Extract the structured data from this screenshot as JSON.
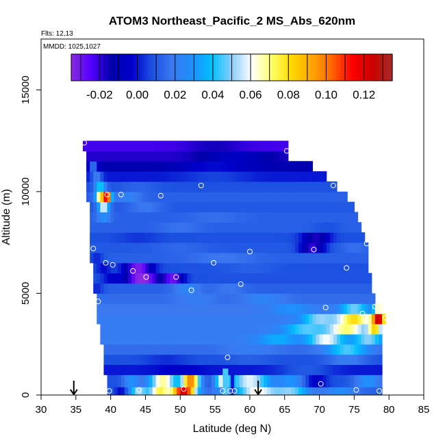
{
  "chart_data": {
    "type": "heatmap",
    "title": "ATOM3 Northeast_Pacific_2 MS_Abs_620nm",
    "flights_label": "Flts: 12,13",
    "dates_label": "MMDD: 1025,1027",
    "xlabel": "Latitude (deg N)",
    "ylabel": "Altitude (m)",
    "xlim": [
      30,
      85
    ],
    "ylim": [
      0,
      17500
    ],
    "x_ticks": [
      30,
      35,
      40,
      45,
      50,
      55,
      60,
      65,
      70,
      75,
      80,
      85
    ],
    "y_ticks": [
      0,
      5000,
      10000,
      15000
    ],
    "y_tick_labels": [
      "0",
      "5000",
      "10000",
      "15000"
    ],
    "grid": false,
    "colorbar": {
      "placement": "top-inside",
      "range": [
        -0.035,
        0.135
      ],
      "ticks": [
        -0.02,
        0.0,
        0.02,
        0.04,
        0.06,
        0.08,
        0.1,
        0.12
      ],
      "tick_labels": [
        "-0.02",
        "0.00",
        "0.02",
        "0.04",
        "0.06",
        "0.08",
        "0.10",
        "0.12"
      ],
      "colors": [
        "#8a2be2",
        "#5500ff",
        "#0000aa",
        "#0000cd",
        "#1a4fe0",
        "#3a78f0",
        "#1e90ff",
        "#00bfff",
        "#87cefa",
        "#ffffff",
        "#ffff66",
        "#ffd700",
        "#ffa500",
        "#ff6600",
        "#ff0000",
        "#cc0000",
        "#a52a2a"
      ]
    },
    "bands": [
      {
        "alt": [
          0,
          400
        ],
        "lat": [
          39.5,
          79
        ],
        "base": 0.012,
        "features": [
          {
            "c": 41.5,
            "w": 1.0,
            "a": -0.015
          },
          {
            "c": 44,
            "w": 1.3,
            "a": 0.04
          },
          {
            "c": 47,
            "w": 1.5,
            "a": 0.06
          },
          {
            "c": 50.5,
            "w": 1.8,
            "a": 0.11
          },
          {
            "c": 55.5,
            "w": 1.0,
            "a": 0.01
          },
          {
            "c": 61,
            "w": 3.0,
            "a": 0.05
          },
          {
            "c": 66,
            "w": 2.5,
            "a": 0.035
          },
          {
            "c": 73,
            "w": 2.5,
            "a": 0.015
          }
        ]
      },
      {
        "alt": [
          400,
          1000
        ],
        "lat": [
          39.5,
          79
        ],
        "base": 0.008,
        "features": [
          {
            "c": 43,
            "w": 1.2,
            "a": 0.02
          },
          {
            "c": 47.5,
            "w": 2.0,
            "a": 0.06
          },
          {
            "c": 51.5,
            "w": 1.3,
            "a": 0.09
          },
          {
            "c": 56,
            "w": 1.0,
            "a": 0.045
          },
          {
            "c": 60,
            "w": 3.0,
            "a": 0.05
          },
          {
            "c": 66,
            "w": 2.0,
            "a": 0.02
          },
          {
            "c": 69.5,
            "w": 1.5,
            "a": -0.015
          },
          {
            "c": 77,
            "w": 2.0,
            "a": 0.02
          }
        ]
      },
      {
        "alt": [
          1000,
          1500
        ],
        "lat": [
          39,
          79
        ],
        "base": 0.0,
        "features": [
          {
            "c": 50,
            "w": 3.0,
            "a": -0.005
          },
          {
            "c": 58,
            "w": 2.0,
            "a": 0.0
          },
          {
            "c": 68,
            "w": 4.0,
            "a": 0.01
          }
        ]
      },
      {
        "alt": [
          1500,
          2000
        ],
        "lat": [
          39,
          79
        ],
        "base": 0.008,
        "features": [
          {
            "c": 48,
            "w": 3.0,
            "a": -0.005
          },
          {
            "c": 60,
            "w": 3.0,
            "a": 0.004
          },
          {
            "c": 74,
            "w": 3.0,
            "a": 0.012
          }
        ]
      },
      {
        "alt": [
          2000,
          2500
        ],
        "lat": [
          39,
          79
        ],
        "base": 0.015,
        "features": [
          {
            "c": 60,
            "w": 4.0,
            "a": 0.005
          },
          {
            "c": 74,
            "w": 3.0,
            "a": 0.03
          }
        ]
      },
      {
        "alt": [
          2500,
          3000
        ],
        "lat": [
          38.5,
          79
        ],
        "base": 0.02,
        "features": [
          {
            "c": 64,
            "w": 3.0,
            "a": 0.015
          },
          {
            "c": 71,
            "w": 2.5,
            "a": 0.04
          },
          {
            "c": 77,
            "w": 2.0,
            "a": 0.03
          }
        ]
      },
      {
        "alt": [
          3000,
          3500
        ],
        "lat": [
          38.5,
          79
        ],
        "base": 0.02,
        "features": [
          {
            "c": 68,
            "w": 3.0,
            "a": 0.025
          },
          {
            "c": 74,
            "w": 3.0,
            "a": 0.05
          },
          {
            "c": 78,
            "w": 1.0,
            "a": 0.055
          }
        ]
      },
      {
        "alt": [
          3500,
          4000
        ],
        "lat": [
          38,
          79.5
        ],
        "base": 0.02,
        "features": [
          {
            "c": 70,
            "w": 2.5,
            "a": 0.03
          },
          {
            "c": 75,
            "w": 2.5,
            "a": 0.06
          },
          {
            "c": 78.5,
            "w": 1.0,
            "a": 0.1
          }
        ]
      },
      {
        "alt": [
          4000,
          4500
        ],
        "lat": [
          38,
          79
        ],
        "base": 0.018,
        "features": [
          {
            "c": 66,
            "w": 3.0,
            "a": 0.01
          },
          {
            "c": 75,
            "w": 2.0,
            "a": 0.03
          },
          {
            "c": 78.5,
            "w": 0.7,
            "a": 0.05
          }
        ]
      },
      {
        "alt": [
          4500,
          5000
        ],
        "lat": [
          38,
          78
        ],
        "base": 0.015,
        "features": [
          {
            "c": 52,
            "w": 3.0,
            "a": 0.005
          },
          {
            "c": 62,
            "w": 3.0,
            "a": 0.008
          }
        ]
      },
      {
        "alt": [
          5000,
          5500
        ],
        "lat": [
          37.5,
          77.5
        ],
        "base": 0.012,
        "features": [
          {
            "c": 51,
            "w": 2.0,
            "a": 0.012
          },
          {
            "c": 57,
            "w": 2.5,
            "a": 0.006
          },
          {
            "c": 38,
            "w": 1.0,
            "a": -0.01
          }
        ]
      },
      {
        "alt": [
          5500,
          6000
        ],
        "lat": [
          37.5,
          77.5
        ],
        "base": 0.008,
        "features": [
          {
            "c": 40,
            "w": 1.2,
            "a": -0.01
          },
          {
            "c": 44.5,
            "w": 2.5,
            "a": -0.045
          },
          {
            "c": 49,
            "w": 1.5,
            "a": -0.035
          }
        ]
      },
      {
        "alt": [
          6000,
          6500
        ],
        "lat": [
          37.5,
          77
        ],
        "base": 0.008,
        "features": [
          {
            "c": 44,
            "w": 2.0,
            "a": -0.04
          },
          {
            "c": 39,
            "w": 1.0,
            "a": -0.01
          },
          {
            "c": 60,
            "w": 4.0,
            "a": 0.004
          }
        ]
      },
      {
        "alt": [
          6500,
          7000
        ],
        "lat": [
          37,
          77
        ],
        "base": 0.012,
        "features": [
          {
            "c": 38,
            "w": 1.0,
            "a": -0.01
          },
          {
            "c": 56,
            "w": 5.0,
            "a": 0.006
          }
        ]
      },
      {
        "alt": [
          7000,
          7500
        ],
        "lat": [
          37,
          77
        ],
        "base": 0.01,
        "features": [
          {
            "c": 50,
            "w": 4.0,
            "a": 0.004
          },
          {
            "c": 69,
            "w": 1.8,
            "a": -0.03
          },
          {
            "c": 75,
            "w": 2.0,
            "a": 0.006
          }
        ]
      },
      {
        "alt": [
          7500,
          8000
        ],
        "lat": [
          37,
          76.5
        ],
        "base": 0.008,
        "features": [
          {
            "c": 69.5,
            "w": 2.0,
            "a": -0.025
          },
          {
            "c": 44,
            "w": 3.0,
            "a": -0.004
          }
        ]
      },
      {
        "alt": [
          8000,
          8500
        ],
        "lat": [
          37,
          76
        ],
        "base": 0.012,
        "features": [
          {
            "c": 50,
            "w": 3.0,
            "a": 0.005
          },
          {
            "c": 71,
            "w": 2.0,
            "a": -0.004
          }
        ]
      },
      {
        "alt": [
          8500,
          9000
        ],
        "lat": [
          37,
          75.5
        ],
        "base": 0.012,
        "features": [
          {
            "c": 39,
            "w": 1.0,
            "a": 0.015
          },
          {
            "c": 55,
            "w": 4.0,
            "a": 0.004
          }
        ]
      },
      {
        "alt": [
          9000,
          9500
        ],
        "lat": [
          37,
          75
        ],
        "base": 0.01,
        "features": [
          {
            "c": 39,
            "w": 0.8,
            "a": 0.05
          },
          {
            "c": 45,
            "w": 2.5,
            "a": 0.008
          }
        ]
      },
      {
        "alt": [
          9500,
          10000
        ],
        "lat": [
          36.5,
          74
        ],
        "base": 0.012,
        "features": [
          {
            "c": 38.5,
            "w": 0.7,
            "a": 0.06
          },
          {
            "c": 39.5,
            "w": 0.6,
            "a": 0.1
          },
          {
            "c": 42.5,
            "w": 2.0,
            "a": 0.01
          }
        ]
      },
      {
        "alt": [
          10000,
          10500
        ],
        "lat": [
          36.5,
          72.5
        ],
        "base": 0.008,
        "features": [
          {
            "c": 38.5,
            "w": 0.8,
            "a": 0.035
          },
          {
            "c": 44,
            "w": 3.0,
            "a": 0.005
          }
        ]
      },
      {
        "alt": [
          10500,
          11000
        ],
        "lat": [
          36.5,
          71
        ],
        "base": 0.0,
        "features": [
          {
            "c": 38,
            "w": 0.8,
            "a": 0.02
          },
          {
            "c": 55,
            "w": 5.0,
            "a": 0.006
          }
        ]
      },
      {
        "alt": [
          11000,
          11500
        ],
        "lat": [
          36.5,
          69
        ],
        "base": -0.012,
        "features": [
          {
            "c": 37.5,
            "w": 0.6,
            "a": 0.03
          },
          {
            "c": 55,
            "w": 5.0,
            "a": 0.01
          }
        ]
      },
      {
        "alt": [
          11500,
          12000
        ],
        "lat": [
          36.5,
          65.5
        ],
        "base": -0.018,
        "features": [
          {
            "c": 58,
            "w": 5.0,
            "a": 0.012
          }
        ]
      },
      {
        "alt": [
          12000,
          12500
        ],
        "lat": [
          36,
          65.5
        ],
        "base": -0.022,
        "features": [
          {
            "c": 55,
            "w": 4.0,
            "a": 0.006
          }
        ]
      }
    ],
    "vertical_profiles": [
      {
        "x": 56.5,
        "alt": [
          0,
          1300
        ],
        "width": 0.8,
        "value": 0.045
      },
      {
        "x": 57.5,
        "alt": [
          0,
          1000
        ],
        "width": 0.5,
        "value": 0.0
      }
    ],
    "markers": [
      {
        "x": 36.2,
        "y": 12400
      },
      {
        "x": 65.3,
        "y": 12000
      },
      {
        "x": 53,
        "y": 10300
      },
      {
        "x": 72,
        "y": 10300
      },
      {
        "x": 39.5,
        "y": 9850
      },
      {
        "x": 41.5,
        "y": 9850
      },
      {
        "x": 47.2,
        "y": 9800
      },
      {
        "x": 37.5,
        "y": 7200
      },
      {
        "x": 60,
        "y": 7050
      },
      {
        "x": 69.2,
        "y": 7150
      },
      {
        "x": 76.8,
        "y": 7450
      },
      {
        "x": 39.3,
        "y": 6500
      },
      {
        "x": 40.3,
        "y": 6400
      },
      {
        "x": 54.8,
        "y": 6500
      },
      {
        "x": 43.2,
        "y": 6100
      },
      {
        "x": 45.1,
        "y": 5800
      },
      {
        "x": 49.4,
        "y": 5800
      },
      {
        "x": 73.9,
        "y": 6250
      },
      {
        "x": 58.7,
        "y": 5450
      },
      {
        "x": 51.6,
        "y": 5150
      },
      {
        "x": 38.2,
        "y": 4600
      },
      {
        "x": 70.9,
        "y": 4300
      },
      {
        "x": 76.2,
        "y": 4000
      },
      {
        "x": 78,
        "y": 4350
      },
      {
        "x": 79.5,
        "y": 3800
      },
      {
        "x": 56.8,
        "y": 1850
      },
      {
        "x": 70.2,
        "y": 550
      },
      {
        "x": 39.8,
        "y": 200
      },
      {
        "x": 44.1,
        "y": 250
      },
      {
        "x": 50.5,
        "y": 300
      },
      {
        "x": 56.1,
        "y": 200
      },
      {
        "x": 57.2,
        "y": 200
      },
      {
        "x": 57.8,
        "y": 200
      },
      {
        "x": 75.3,
        "y": 250
      },
      {
        "x": 78.6,
        "y": 200
      }
    ],
    "arrows": [
      {
        "x": 34.7
      },
      {
        "x": 61.2
      }
    ]
  }
}
